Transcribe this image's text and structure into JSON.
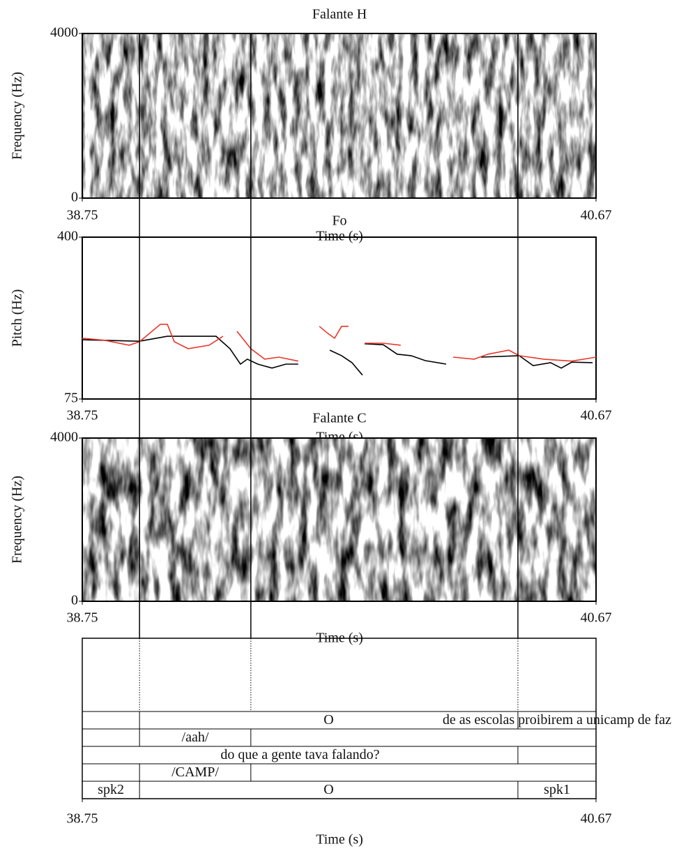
{
  "chart_data": [
    {
      "type": "spectrogram",
      "title": "Falante H",
      "xlabel": "Time (s)",
      "ylabel": "Frequency (Hz)",
      "xlim": [
        38.75,
        40.67
      ],
      "xticks": [
        38.75,
        40.67
      ],
      "ylim": [
        0,
        4000
      ],
      "yticks": [
        0,
        4000
      ]
    },
    {
      "type": "line",
      "title": "Fo",
      "xlabel": "Time (s)",
      "ylabel": "Pitch (Hz)",
      "xlim": [
        38.75,
        40.67
      ],
      "xticks": [
        38.75,
        40.67
      ],
      "ylim": [
        75,
        400
      ],
      "yticks": [
        75,
        400
      ],
      "series": [
        {
          "color": "#000000",
          "x": [
            38.75,
            38.964,
            39.068,
            39.25,
            39.302,
            39.341,
            39.367,
            39.406,
            39.459,
            39.511,
            39.557,
            39.6,
            39.675,
            39.719,
            39.758,
            39.797,
            39.8,
            39.805,
            39.875,
            39.927,
            39.979,
            40.032,
            40.11,
            40.13,
            40.24,
            40.383,
            40.435,
            40.5,
            40.54,
            40.579,
            40.657
          ],
          "values": [
            194,
            191,
            201,
            201,
            176,
            145,
            155,
            145,
            137,
            145,
            145,
            null,
            173,
            162,
            148,
            123,
            null,
            186,
            184,
            165,
            162,
            152,
            145,
            null,
            159,
            162,
            142,
            148,
            137,
            149,
            148
          ]
        },
        {
          "color": "#e8362a",
          "x": [
            38.75,
            38.833,
            38.925,
            38.964,
            39.042,
            39.068,
            39.094,
            39.146,
            39.224,
            39.276,
            39.3,
            39.328,
            39.38,
            39.432,
            39.485,
            39.557,
            39.6,
            39.636,
            39.667,
            39.693,
            39.719,
            39.745,
            39.77,
            39.805,
            39.875,
            39.94,
            40.0,
            40.136,
            40.214,
            40.266,
            40.344,
            40.383,
            40.474,
            40.579,
            40.67
          ],
          "values": [
            197,
            193,
            183,
            190,
            225,
            225,
            190,
            176,
            183,
            201,
            null,
            211,
            176,
            155,
            159,
            151,
            null,
            221,
            207,
            197,
            221,
            221,
            null,
            187,
            187,
            183,
            null,
            159,
            155,
            165,
            173,
            162,
            155,
            151,
            159
          ]
        }
      ]
    },
    {
      "type": "spectrogram",
      "title": "Falante C",
      "xlabel": "Time (s)",
      "ylabel": "Frequency (Hz)",
      "xlim": [
        38.75,
        40.67
      ],
      "xticks": [
        38.75,
        40.67
      ],
      "ylim": [
        0,
        4000
      ],
      "yticks": [
        0,
        4000
      ]
    },
    {
      "type": "textgrid",
      "xlabel": "Time (s)",
      "xlim": [
        38.75,
        40.67
      ],
      "xticks": [
        38.75,
        40.67
      ],
      "tiers": [
        {
          "points": [
            38.964,
            39.38,
            40.378
          ]
        },
        {
          "intervals": [
            {
              "start": 38.75,
              "end": 38.964
            },
            {
              "start": 38.964,
              "end": 40.378,
              "text": "O"
            },
            {
              "start": 40.378,
              "end": 40.67,
              "text": "de as escolas proibirem a unicamp de faz"
            }
          ]
        },
        {
          "intervals": [
            {
              "start": 38.75,
              "end": 38.964
            },
            {
              "start": 38.964,
              "end": 39.38,
              "text": "/aah/"
            },
            {
              "start": 39.38,
              "end": 40.67
            }
          ]
        },
        {
          "intervals": [
            {
              "start": 38.75,
              "end": 40.378,
              "text": "do que a gente tava falando?"
            },
            {
              "start": 40.378,
              "end": 40.67
            }
          ]
        },
        {
          "intervals": [
            {
              "start": 38.75,
              "end": 38.964
            },
            {
              "start": 38.964,
              "end": 39.38,
              "text": "/CAMP/"
            },
            {
              "start": 39.38,
              "end": 40.67
            }
          ]
        },
        {
          "intervals": [
            {
              "start": 38.75,
              "end": 38.964,
              "text": "spk2"
            },
            {
              "start": 38.964,
              "end": 40.378,
              "text": "O"
            },
            {
              "start": 40.378,
              "end": 40.67,
              "text": "spk1"
            }
          ]
        }
      ]
    }
  ]
}
